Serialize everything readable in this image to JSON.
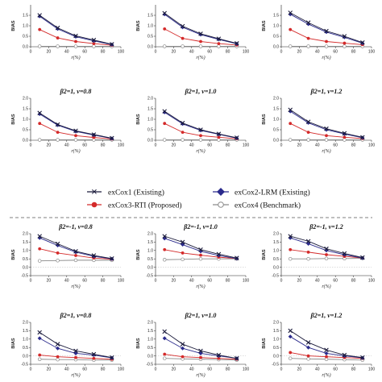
{
  "legend": [
    {
      "label": "exCox1 (Existing)",
      "color": "#1a1a3a",
      "marker": "x"
    },
    {
      "label": "exCox2-LRM (Existing)",
      "color": "#2a2a8c",
      "marker": "diamond"
    },
    {
      "label": "exCox3-RTI (Proposed)",
      "color": "#d42a2a",
      "marker": "circle"
    },
    {
      "label": "exCox4 (Benchmark)",
      "color": "#8a8a8a",
      "marker": "open-circle"
    }
  ],
  "chart_data": [
    {
      "type": "line",
      "title": "",
      "xlabel": "r(%)",
      "ylabel": "BIAS",
      "xlim": [
        0,
        100
      ],
      "ylim": [
        0,
        2.0
      ],
      "x": [
        10,
        30,
        50,
        70,
        90
      ],
      "yticks": [
        "0.0",
        "0.5",
        "1.0",
        "1.5"
      ],
      "xticks": [
        "0",
        "20",
        "40",
        "60",
        "80",
        "100"
      ],
      "series": [
        {
          "name": "exCox1 (Existing)",
          "values": [
            1.5,
            0.9,
            0.52,
            0.32,
            0.12
          ]
        },
        {
          "name": "exCox2-LRM (Existing)",
          "values": [
            1.45,
            0.85,
            0.48,
            0.28,
            0.1
          ]
        },
        {
          "name": "exCox3-RTI (Proposed)",
          "values": [
            0.82,
            0.42,
            0.25,
            0.15,
            0.07
          ]
        },
        {
          "name": "exCox4 (Benchmark)",
          "values": [
            0.02,
            0.02,
            0.02,
            0.02,
            0.02
          ]
        }
      ]
    },
    {
      "type": "line",
      "title": "",
      "xlabel": "r(%)",
      "ylabel": "BIAS",
      "xlim": [
        0,
        100
      ],
      "ylim": [
        0,
        2.0
      ],
      "x": [
        10,
        30,
        50,
        70,
        90
      ],
      "yticks": [
        "0.0",
        "0.5",
        "1.0",
        "1.5"
      ],
      "xticks": [
        "0",
        "20",
        "40",
        "60",
        "80",
        "100"
      ],
      "series": [
        {
          "name": "exCox1 (Existing)",
          "values": [
            1.6,
            0.98,
            0.62,
            0.38,
            0.16
          ]
        },
        {
          "name": "exCox2-LRM (Existing)",
          "values": [
            1.55,
            0.93,
            0.58,
            0.35,
            0.14
          ]
        },
        {
          "name": "exCox3-RTI (Proposed)",
          "values": [
            0.85,
            0.4,
            0.25,
            0.15,
            0.08
          ]
        },
        {
          "name": "exCox4 (Benchmark)",
          "values": [
            0.02,
            0.02,
            0.02,
            0.02,
            0.02
          ]
        }
      ]
    },
    {
      "type": "line",
      "title": "",
      "xlabel": "r(%)",
      "ylabel": "BIAS",
      "xlim": [
        0,
        100
      ],
      "ylim": [
        0,
        2.0
      ],
      "x": [
        10,
        30,
        50,
        70,
        90
      ],
      "yticks": [
        "0.0",
        "0.5",
        "1.0",
        "1.5"
      ],
      "xticks": [
        "0",
        "20",
        "40",
        "60",
        "80",
        "100"
      ],
      "series": [
        {
          "name": "exCox1 (Existing)",
          "values": [
            1.62,
            1.15,
            0.75,
            0.5,
            0.2
          ]
        },
        {
          "name": "exCox2-LRM (Existing)",
          "values": [
            1.55,
            1.08,
            0.7,
            0.45,
            0.17
          ]
        },
        {
          "name": "exCox3-RTI (Proposed)",
          "values": [
            0.82,
            0.4,
            0.25,
            0.17,
            0.1
          ]
        },
        {
          "name": "exCox4 (Benchmark)",
          "values": [
            0.02,
            0.02,
            0.02,
            0.02,
            0.02
          ]
        }
      ]
    },
    {
      "type": "line",
      "title": "β2=1, ν=0.8",
      "xlabel": "r(%)",
      "ylabel": "BIAS",
      "xlim": [
        0,
        100
      ],
      "ylim": [
        0,
        2.0
      ],
      "x": [
        10,
        30,
        50,
        70,
        90
      ],
      "yticks": [
        "0.0",
        "0.5",
        "1.0",
        "1.5",
        "2.0"
      ],
      "xticks": [
        "0",
        "20",
        "40",
        "60",
        "80",
        "100"
      ],
      "series": [
        {
          "name": "exCox1 (Existing)",
          "values": [
            1.3,
            0.75,
            0.45,
            0.27,
            0.1
          ]
        },
        {
          "name": "exCox2-LRM (Existing)",
          "values": [
            1.25,
            0.72,
            0.42,
            0.25,
            0.08
          ]
        },
        {
          "name": "exCox3-RTI (Proposed)",
          "values": [
            0.8,
            0.38,
            0.22,
            0.13,
            0.06
          ]
        },
        {
          "name": "exCox4 (Benchmark)",
          "values": [
            0.02,
            0.02,
            0.02,
            0.02,
            0.02
          ]
        }
      ]
    },
    {
      "type": "line",
      "title": "β2=1, ν=1.0",
      "xlabel": "r(%)",
      "ylabel": "BIAS",
      "xlim": [
        0,
        100
      ],
      "ylim": [
        0,
        2.0
      ],
      "x": [
        10,
        30,
        50,
        70,
        90
      ],
      "yticks": [
        "0.0",
        "0.5",
        "1.0",
        "1.5",
        "2.0"
      ],
      "xticks": [
        "0",
        "20",
        "40",
        "60",
        "80",
        "100"
      ],
      "series": [
        {
          "name": "exCox1 (Existing)",
          "values": [
            1.38,
            0.82,
            0.5,
            0.3,
            0.12
          ]
        },
        {
          "name": "exCox2-LRM (Existing)",
          "values": [
            1.33,
            0.78,
            0.47,
            0.28,
            0.1
          ]
        },
        {
          "name": "exCox3-RTI (Proposed)",
          "values": [
            0.8,
            0.38,
            0.22,
            0.14,
            0.07
          ]
        },
        {
          "name": "exCox4 (Benchmark)",
          "values": [
            0.02,
            0.02,
            0.02,
            0.02,
            0.02
          ]
        }
      ]
    },
    {
      "type": "line",
      "title": "β2=1, ν=1.2",
      "xlabel": "r(%)",
      "ylabel": "BIAS",
      "xlim": [
        0,
        100
      ],
      "ylim": [
        0,
        2.0
      ],
      "x": [
        10,
        30,
        50,
        70,
        90
      ],
      "yticks": [
        "0.0",
        "0.5",
        "1.0",
        "1.5",
        "2.0"
      ],
      "xticks": [
        "0",
        "20",
        "40",
        "60",
        "80",
        "100"
      ],
      "series": [
        {
          "name": "exCox1 (Existing)",
          "values": [
            1.45,
            0.88,
            0.55,
            0.33,
            0.14
          ]
        },
        {
          "name": "exCox2-LRM (Existing)",
          "values": [
            1.38,
            0.83,
            0.5,
            0.3,
            0.12
          ]
        },
        {
          "name": "exCox3-RTI (Proposed)",
          "values": [
            0.8,
            0.38,
            0.22,
            0.14,
            0.08
          ]
        },
        {
          "name": "exCox4 (Benchmark)",
          "values": [
            0.02,
            0.02,
            0.02,
            0.02,
            0.02
          ]
        }
      ]
    },
    {
      "type": "line",
      "title": "β2=-1, ν=0.8",
      "xlabel": "r(%)",
      "ylabel": "BIAS",
      "xlim": [
        0,
        100
      ],
      "ylim": [
        -0.5,
        2.0
      ],
      "x": [
        10,
        30,
        50,
        70,
        90
      ],
      "yticks": [
        "-0.5",
        "0.0",
        "0.5",
        "1.0",
        "1.5",
        "2.0"
      ],
      "xticks": [
        "0",
        "20",
        "40",
        "60",
        "80",
        "100"
      ],
      "series": [
        {
          "name": "exCox1 (Existing)",
          "values": [
            1.85,
            1.4,
            0.95,
            0.7,
            0.52
          ]
        },
        {
          "name": "exCox2-LRM (Existing)",
          "values": [
            1.75,
            1.3,
            0.9,
            0.65,
            0.5
          ]
        },
        {
          "name": "exCox3-RTI (Proposed)",
          "values": [
            1.1,
            0.85,
            0.7,
            0.55,
            0.48
          ]
        },
        {
          "name": "exCox4 (Benchmark)",
          "values": [
            0.38,
            0.4,
            0.42,
            0.42,
            0.42
          ]
        }
      ]
    },
    {
      "type": "line",
      "title": "β2=-1, ν=1.0",
      "xlabel": "r(%)",
      "ylabel": "BIAS",
      "xlim": [
        0,
        100
      ],
      "ylim": [
        -0.5,
        2.0
      ],
      "x": [
        10,
        30,
        50,
        70,
        90
      ],
      "yticks": [
        "-0.5",
        "0.0",
        "0.5",
        "1.0",
        "1.5",
        "2.0"
      ],
      "xticks": [
        "0",
        "20",
        "40",
        "60",
        "80",
        "100"
      ],
      "series": [
        {
          "name": "exCox1 (Existing)",
          "values": [
            1.85,
            1.5,
            1.05,
            0.78,
            0.55
          ]
        },
        {
          "name": "exCox2-LRM (Existing)",
          "values": [
            1.72,
            1.35,
            0.95,
            0.7,
            0.52
          ]
        },
        {
          "name": "exCox3-RTI (Proposed)",
          "values": [
            1.05,
            0.85,
            0.72,
            0.6,
            0.52
          ]
        },
        {
          "name": "exCox4 (Benchmark)",
          "values": [
            0.45,
            0.47,
            0.5,
            0.5,
            0.5
          ]
        }
      ]
    },
    {
      "type": "line",
      "title": "β2=-1, ν=1.2",
      "xlabel": "r(%)",
      "ylabel": "BIAS",
      "xlim": [
        0,
        100
      ],
      "ylim": [
        -0.5,
        2.0
      ],
      "x": [
        10,
        30,
        50,
        70,
        90
      ],
      "yticks": [
        "-0.5",
        "0.0",
        "0.5",
        "1.0",
        "1.5",
        "2.0"
      ],
      "xticks": [
        "0",
        "20",
        "40",
        "60",
        "80",
        "100"
      ],
      "series": [
        {
          "name": "exCox1 (Existing)",
          "values": [
            1.85,
            1.55,
            1.1,
            0.82,
            0.58
          ]
        },
        {
          "name": "exCox2-LRM (Existing)",
          "values": [
            1.75,
            1.4,
            1.0,
            0.75,
            0.55
          ]
        },
        {
          "name": "exCox3-RTI (Proposed)",
          "values": [
            1.05,
            0.9,
            0.75,
            0.65,
            0.55
          ]
        },
        {
          "name": "exCox4 (Benchmark)",
          "values": [
            0.5,
            0.5,
            0.52,
            0.52,
            0.53
          ]
        }
      ]
    },
    {
      "type": "line",
      "title": "β2=1, ν=0.8",
      "xlabel": "r(%)",
      "ylabel": "BIAS",
      "xlim": [
        0,
        100
      ],
      "ylim": [
        -0.5,
        2.0
      ],
      "x": [
        10,
        30,
        50,
        70,
        90
      ],
      "yticks": [
        "-0.5",
        "0.0",
        "0.5",
        "1.0",
        "1.5",
        "2.0"
      ],
      "xticks": [
        "0",
        "20",
        "40",
        "60",
        "80",
        "100"
      ],
      "series": [
        {
          "name": "exCox1 (Existing)",
          "values": [
            1.4,
            0.7,
            0.3,
            0.1,
            -0.1
          ]
        },
        {
          "name": "exCox2-LRM (Existing)",
          "values": [
            1.05,
            0.45,
            0.15,
            0.05,
            -0.12
          ]
        },
        {
          "name": "exCox3-RTI (Proposed)",
          "values": [
            0.05,
            -0.05,
            -0.1,
            -0.15,
            -0.2
          ]
        },
        {
          "name": "exCox4 (Benchmark)",
          "values": [
            -0.2,
            -0.22,
            -0.22,
            -0.25,
            -0.25
          ]
        }
      ]
    },
    {
      "type": "line",
      "title": "β2=1, ν=1.0",
      "xlabel": "r(%)",
      "ylabel": "BIAS",
      "xlim": [
        0,
        100
      ],
      "ylim": [
        -0.5,
        2.0
      ],
      "x": [
        10,
        30,
        50,
        70,
        90
      ],
      "yticks": [
        "-0.5",
        "0.0",
        "0.5",
        "1.0",
        "1.5",
        "2.0"
      ],
      "xticks": [
        "0",
        "20",
        "40",
        "60",
        "80",
        "100"
      ],
      "series": [
        {
          "name": "exCox1 (Existing)",
          "values": [
            1.45,
            0.7,
            0.3,
            0.05,
            -0.15
          ]
        },
        {
          "name": "exCox2-LRM (Existing)",
          "values": [
            1.05,
            0.45,
            0.15,
            0.0,
            -0.15
          ]
        },
        {
          "name": "exCox3-RTI (Proposed)",
          "values": [
            0.1,
            -0.05,
            -0.1,
            -0.15,
            -0.2
          ]
        },
        {
          "name": "exCox4 (Benchmark)",
          "values": [
            -0.15,
            -0.18,
            -0.2,
            -0.22,
            -0.25
          ]
        }
      ]
    },
    {
      "type": "line",
      "title": "β2=1, ν=1.2",
      "xlabel": "r(%)",
      "ylabel": "BIAS",
      "xlim": [
        0,
        100
      ],
      "ylim": [
        -0.5,
        2.0
      ],
      "x": [
        10,
        30,
        50,
        70,
        90
      ],
      "yticks": [
        "-0.5",
        "0.0",
        "0.5",
        "1.0",
        "1.5",
        "2.0"
      ],
      "xticks": [
        "0",
        "20",
        "40",
        "60",
        "80",
        "100"
      ],
      "series": [
        {
          "name": "exCox1 (Existing)",
          "values": [
            1.5,
            0.8,
            0.35,
            0.05,
            -0.1
          ]
        },
        {
          "name": "exCox2-LRM (Existing)",
          "values": [
            1.15,
            0.5,
            0.15,
            0.0,
            -0.12
          ]
        },
        {
          "name": "exCox3-RTI (Proposed)",
          "values": [
            0.2,
            0.0,
            -0.05,
            -0.1,
            -0.15
          ]
        },
        {
          "name": "exCox4 (Benchmark)",
          "values": [
            -0.15,
            -0.18,
            -0.2,
            -0.22,
            -0.25
          ]
        }
      ]
    }
  ]
}
